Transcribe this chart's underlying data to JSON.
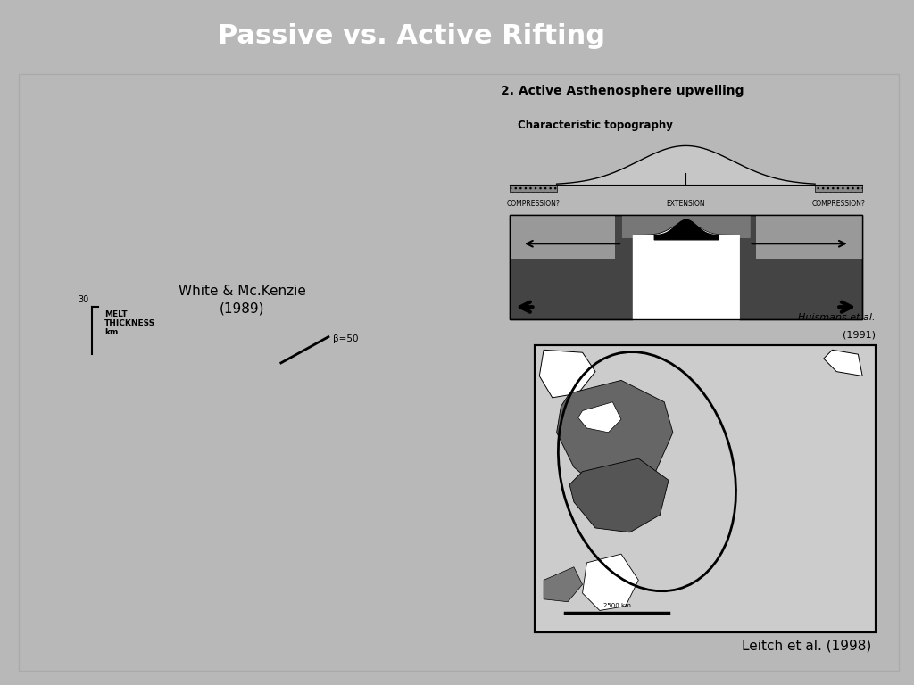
{
  "title": "Passive vs. Active Rifting",
  "title_color": "#ffffff",
  "title_fontsize": 22,
  "title_fontweight": "bold",
  "background_slide": "#b8b8b8",
  "panel_bg": "#ffffff",
  "label_white_mckenzie_line1": "White & Mc.Kenzie",
  "label_white_mckenzie_line2": "(1989)",
  "label_huismans_line1": "Huismans et al.",
  "label_huismans_line2": "(1991)",
  "label_leitch": "Leitch et al. (1998)",
  "text_active_asthenosphere": "2. Active Asthenosphere upwelling",
  "text_characteristic_topo": "Characteristic topography",
  "text_compression_left": "COMPRESSION?",
  "text_extension": "EXTENSION",
  "text_compression_right": "COMPRESSION?",
  "text_melt": "MELT\nTHICKNESS\nkm",
  "text_30": "30",
  "text_beta": "β=50"
}
